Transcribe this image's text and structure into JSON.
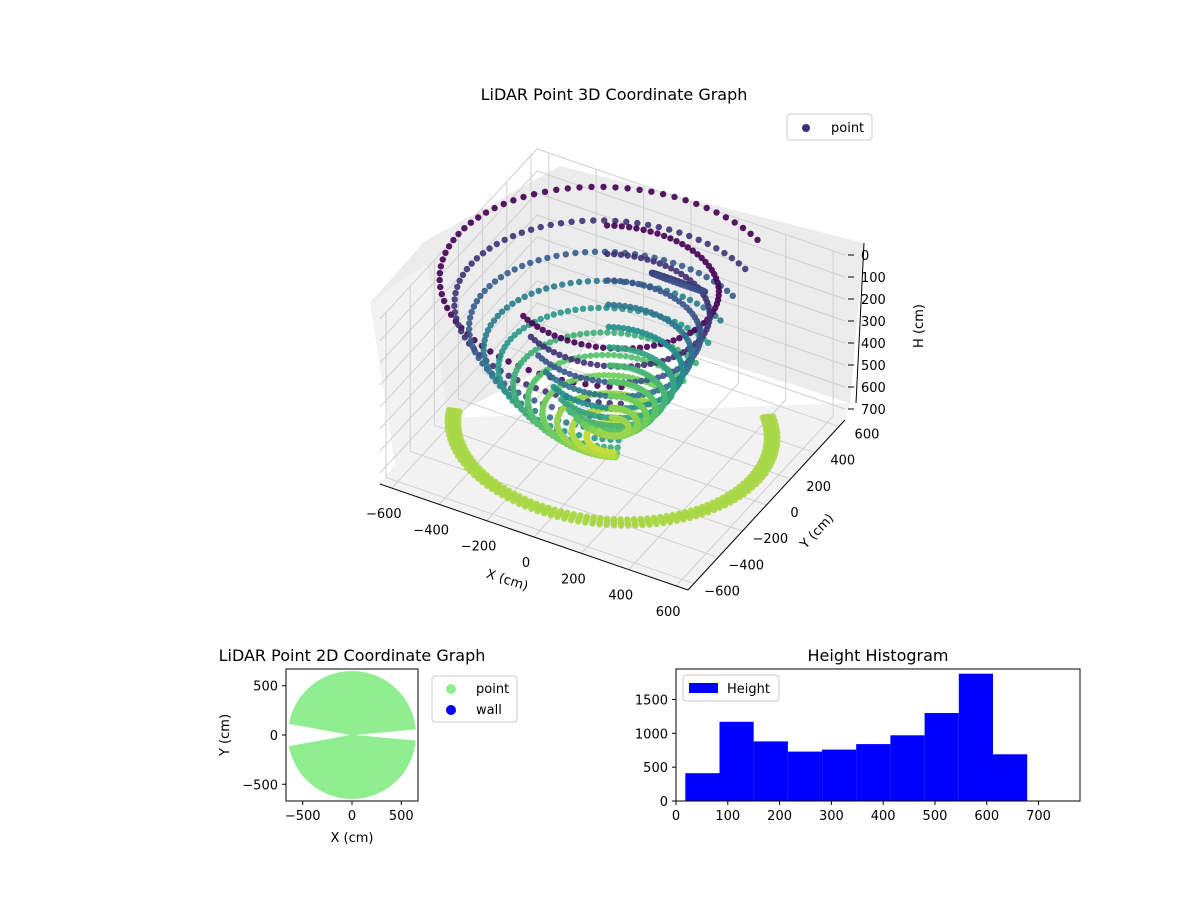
{
  "chart_data": [
    {
      "type": "scatter3d",
      "title": "LiDAR Point 3D Coordinate Graph",
      "xlabel": "X (cm)",
      "ylabel": "Y (cm)",
      "zlabel": "H (cm)",
      "x_ticks": [
        "−600",
        "−400",
        "−200",
        "0",
        "200",
        "400",
        "600"
      ],
      "y_ticks": [
        "−600",
        "−400",
        "−200",
        "0",
        "200",
        "400",
        "600"
      ],
      "z_ticks": [
        "0",
        "100",
        "200",
        "300",
        "400",
        "500",
        "600",
        "700"
      ],
      "xlim": [
        -650,
        650
      ],
      "ylim": [
        -650,
        650
      ],
      "zlim": [
        0,
        750
      ],
      "z_inverted": true,
      "colormap": "viridis",
      "legend": {
        "entries": [
          "point"
        ],
        "placement": "top-right",
        "color": "#3b2f7a"
      },
      "structures": [
        {
          "name": "",
          "shape": "bowl",
          "center_x": 0,
          "center_y": 0,
          "radius": 650,
          "h_rim": 0,
          "h_bottom": 700,
          "angle_from_deg": 60,
          "angle_to_deg": 300
        },
        {
          "name": "",
          "shape": "bowl",
          "center_x": 0,
          "center_y": 0,
          "radius": 400,
          "h_rim": 0,
          "h_bottom": 650,
          "angle_from_deg": -120,
          "angle_to_deg": 120
        },
        {
          "name": "",
          "shape": "ring",
          "center_x": 0,
          "center_y": 0,
          "radius": 600,
          "h": 650,
          "angle_from_deg": -160,
          "angle_to_deg": 40
        },
        {
          "name": "",
          "shape": "loop",
          "center_x": 100,
          "center_y": 350,
          "radius": 110,
          "h": 150
        }
      ]
    },
    {
      "type": "scatter",
      "title": "LiDAR Point 2D Coordinate Graph",
      "xlabel": "X (cm)",
      "ylabel": "Y (cm)",
      "x_ticks": [
        -500,
        0,
        500
      ],
      "y_ticks": [
        -500,
        0,
        500
      ],
      "xlim": [
        -670,
        670
      ],
      "ylim": [
        -670,
        670
      ],
      "series": [
        {
          "name": "point",
          "color": "#90ee90",
          "region": {
            "shape": "disc-with-notch",
            "center": [
              0,
              0
            ],
            "radius": 650,
            "notch_deg": [
              180,
              360
            ]
          }
        },
        {
          "name": "wall",
          "color": "#0000ff",
          "values": []
        }
      ],
      "legend": {
        "entries": [
          "point",
          "wall"
        ],
        "placement": "outside-right"
      }
    },
    {
      "type": "bar",
      "title": "Height Histogram",
      "xlabel": "",
      "ylabel": "",
      "xlim": [
        0,
        780
      ],
      "ylim": [
        0,
        1950
      ],
      "x_ticks": [
        0,
        100,
        200,
        300,
        400,
        500,
        600,
        700
      ],
      "y_ticks": [
        0,
        500,
        1000,
        1500
      ],
      "bin_edges": [
        18,
        84,
        150,
        216,
        282,
        348,
        414,
        480,
        546,
        612,
        678
      ],
      "values": [
        410,
        1170,
        880,
        730,
        760,
        840,
        970,
        1300,
        1880,
        690
      ],
      "series": [
        {
          "name": "Height",
          "color": "#0000ff"
        }
      ],
      "legend": {
        "entries": [
          "Height"
        ],
        "placement": "top-left"
      }
    }
  ]
}
